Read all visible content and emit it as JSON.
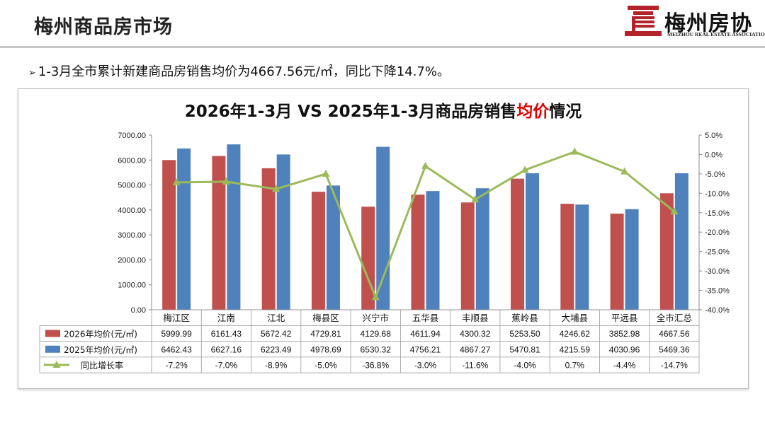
{
  "header": {
    "title": "梅州商品房市场",
    "logo_text": "梅州房协",
    "logo_subtext": "MEIZHOU REAL ESTATE ASSOCIATION"
  },
  "bullet": {
    "text": "1-3月全市累计新建商品房销售均价为4667.56元/㎡，同比下降14.7%。"
  },
  "colors": {
    "bar_2026": "#c0504d",
    "bar_2025": "#4f81bd",
    "line": "#9bbb59",
    "title_highlight": "#e00000"
  },
  "chart_data": {
    "type": "bar",
    "title_parts": [
      "2026年1-3月 VS 2025年1-3月商品房销售",
      "均价",
      "情况"
    ],
    "categories": [
      "梅江区",
      "江南",
      "江北",
      "梅县区",
      "兴宁市",
      "五华县",
      "丰顺县",
      "蕉岭县",
      "大埔县",
      "平远县",
      "全市汇总"
    ],
    "series": [
      {
        "name": "2026年均价(元/㎡)",
        "type": "bar",
        "axis": "left",
        "values": [
          5999.99,
          6161.43,
          5672.42,
          4729.81,
          4129.68,
          4611.94,
          4300.32,
          5253.5,
          4246.62,
          3852.98,
          4667.56
        ],
        "labels": [
          "5999.99",
          "6161.43",
          "5672.42",
          "4729.81",
          "4129.68",
          "4611.94",
          "4300.32",
          "5253.50",
          "4246.62",
          "3852.98",
          "4667.56"
        ]
      },
      {
        "name": "2025年均价(元/㎡)",
        "type": "bar",
        "axis": "left",
        "values": [
          6462.43,
          6627.16,
          6223.49,
          4978.69,
          6530.32,
          4756.21,
          4867.27,
          5470.81,
          4215.59,
          4030.96,
          5469.36
        ],
        "labels": [
          "6462.43",
          "6627.16",
          "6223.49",
          "4978.69",
          "6530.32",
          "4756.21",
          "4867.27",
          "5470.81",
          "4215.59",
          "4030.96",
          "5469.36"
        ]
      },
      {
        "name": "同比增长率",
        "type": "line",
        "axis": "right",
        "values": [
          -7.2,
          -7.0,
          -8.9,
          -5.0,
          -36.8,
          -3.0,
          -11.6,
          -4.0,
          0.7,
          -4.4,
          -14.7
        ],
        "labels": [
          "-7.2%",
          "-7.0%",
          "-8.9%",
          "-5.0%",
          "-36.8%",
          "-3.0%",
          "-11.6%",
          "-4.0%",
          "0.7%",
          "-4.4%",
          "-14.7%"
        ]
      }
    ],
    "y_left": {
      "min": 0,
      "max": 7000,
      "step": 1000,
      "ticks": [
        "0.00",
        "1000.00",
        "2000.00",
        "3000.00",
        "4000.00",
        "5000.00",
        "6000.00",
        "7000.00"
      ]
    },
    "y_right": {
      "min": -40,
      "max": 5,
      "step": 5,
      "ticks": [
        "-40.0%",
        "-35.0%",
        "-30.0%",
        "-25.0%",
        "-20.0%",
        "-15.0%",
        "-10.0%",
        "-5.0%",
        "0.0%",
        "5.0%"
      ]
    },
    "grid": false,
    "legend": "data-table-below"
  }
}
